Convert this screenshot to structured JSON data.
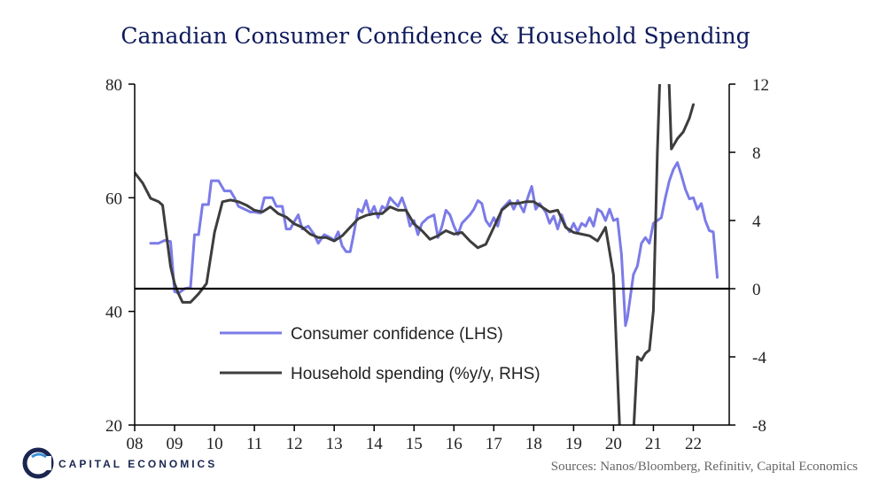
{
  "chart_data": {
    "type": "line",
    "title": "Canadian Consumer Confidence & Household Spending",
    "x_tick_labels": [
      "08",
      "09",
      "10",
      "11",
      "12",
      "13",
      "14",
      "15",
      "16",
      "17",
      "18",
      "19",
      "20",
      "21",
      "22"
    ],
    "xlim": [
      2008,
      2022.9
    ],
    "left_axis": {
      "ylim": [
        20,
        80
      ],
      "ticks": [
        "20",
        "40",
        "60",
        "80"
      ]
    },
    "right_axis": {
      "ylim": [
        -8,
        12
      ],
      "ticks": [
        "-8",
        "-4",
        "0",
        "4",
        "8",
        "12"
      ]
    },
    "series": [
      {
        "name": "Consumer confidence (LHS)",
        "axis": "left",
        "color": "#7b7be8",
        "points": [
          [
            2008.4,
            52
          ],
          [
            2008.6,
            52
          ],
          [
            2008.75,
            52.5
          ],
          [
            2008.9,
            52.3
          ],
          [
            2009.0,
            43.5
          ],
          [
            2009.1,
            43.2
          ],
          [
            2009.25,
            44
          ],
          [
            2009.4,
            44.2
          ],
          [
            2009.5,
            53.5
          ],
          [
            2009.6,
            53.5
          ],
          [
            2009.7,
            58.8
          ],
          [
            2009.85,
            58.8
          ],
          [
            2009.92,
            63
          ],
          [
            2010.1,
            63
          ],
          [
            2010.25,
            61.2
          ],
          [
            2010.4,
            61.2
          ],
          [
            2010.5,
            60
          ],
          [
            2010.6,
            58.5
          ],
          [
            2010.75,
            58
          ],
          [
            2010.9,
            57.5
          ],
          [
            2011.0,
            57.5
          ],
          [
            2011.15,
            57.3
          ],
          [
            2011.25,
            60
          ],
          [
            2011.45,
            60
          ],
          [
            2011.55,
            58.5
          ],
          [
            2011.7,
            58.5
          ],
          [
            2011.8,
            54.5
          ],
          [
            2011.9,
            54.5
          ],
          [
            2012.0,
            55.8
          ],
          [
            2012.1,
            57
          ],
          [
            2012.2,
            54.5
          ],
          [
            2012.35,
            55
          ],
          [
            2012.5,
            53.5
          ],
          [
            2012.6,
            52
          ],
          [
            2012.75,
            53.5
          ],
          [
            2012.9,
            53
          ],
          [
            2013.0,
            52.5
          ],
          [
            2013.1,
            54
          ],
          [
            2013.2,
            51.5
          ],
          [
            2013.3,
            50.5
          ],
          [
            2013.4,
            50.5
          ],
          [
            2013.5,
            54
          ],
          [
            2013.6,
            58
          ],
          [
            2013.7,
            57.5
          ],
          [
            2013.8,
            59.5
          ],
          [
            2013.9,
            57
          ],
          [
            2014.0,
            58.5
          ],
          [
            2014.1,
            56.5
          ],
          [
            2014.2,
            58.5
          ],
          [
            2014.3,
            58
          ],
          [
            2014.4,
            60
          ],
          [
            2014.5,
            59.2
          ],
          [
            2014.6,
            58.5
          ],
          [
            2014.7,
            60
          ],
          [
            2014.8,
            58
          ],
          [
            2014.9,
            55
          ],
          [
            2015.0,
            56
          ],
          [
            2015.1,
            53.5
          ],
          [
            2015.2,
            55.5
          ],
          [
            2015.35,
            56.5
          ],
          [
            2015.5,
            57
          ],
          [
            2015.6,
            53
          ],
          [
            2015.7,
            55
          ],
          [
            2015.8,
            57.8
          ],
          [
            2015.9,
            57
          ],
          [
            2016.0,
            55
          ],
          [
            2016.1,
            53.5
          ],
          [
            2016.2,
            55.5
          ],
          [
            2016.4,
            57
          ],
          [
            2016.5,
            58
          ],
          [
            2016.6,
            59.5
          ],
          [
            2016.7,
            59
          ],
          [
            2016.8,
            56
          ],
          [
            2016.9,
            55
          ],
          [
            2017.0,
            56.5
          ],
          [
            2017.1,
            55
          ],
          [
            2017.2,
            58
          ],
          [
            2017.4,
            59.5
          ],
          [
            2017.5,
            58
          ],
          [
            2017.6,
            59.5
          ],
          [
            2017.75,
            57.5
          ],
          [
            2017.85,
            60
          ],
          [
            2017.95,
            62
          ],
          [
            2018.05,
            58
          ],
          [
            2018.15,
            59
          ],
          [
            2018.3,
            57.5
          ],
          [
            2018.4,
            55.5
          ],
          [
            2018.5,
            56.8
          ],
          [
            2018.6,
            54.5
          ],
          [
            2018.7,
            57
          ],
          [
            2018.8,
            55
          ],
          [
            2018.9,
            54
          ],
          [
            2019.0,
            55.5
          ],
          [
            2019.1,
            54
          ],
          [
            2019.2,
            55.5
          ],
          [
            2019.3,
            55
          ],
          [
            2019.4,
            56.5
          ],
          [
            2019.5,
            55
          ],
          [
            2019.6,
            58
          ],
          [
            2019.7,
            57.5
          ],
          [
            2019.8,
            56
          ],
          [
            2019.9,
            58
          ],
          [
            2020.0,
            56
          ],
          [
            2020.1,
            56.3
          ],
          [
            2020.2,
            50
          ],
          [
            2020.3,
            37.5
          ],
          [
            2020.35,
            39
          ],
          [
            2020.5,
            46.5
          ],
          [
            2020.6,
            48
          ],
          [
            2020.7,
            52
          ],
          [
            2020.8,
            53
          ],
          [
            2020.9,
            52
          ],
          [
            2021.0,
            55.5
          ],
          [
            2021.1,
            56
          ],
          [
            2021.2,
            56.5
          ],
          [
            2021.3,
            60
          ],
          [
            2021.4,
            63
          ],
          [
            2021.5,
            65
          ],
          [
            2021.6,
            66.2
          ],
          [
            2021.7,
            64
          ],
          [
            2021.8,
            61.5
          ],
          [
            2021.9,
            59.8
          ],
          [
            2022.0,
            60
          ],
          [
            2022.1,
            58
          ],
          [
            2022.2,
            59
          ],
          [
            2022.3,
            56
          ],
          [
            2022.4,
            54.2
          ],
          [
            2022.5,
            54
          ],
          [
            2022.6,
            46
          ]
        ]
      },
      {
        "name": "Household spending (%y/y, RHS)",
        "axis": "right",
        "color": "#3d3d3d",
        "points": [
          [
            2008.0,
            6.8
          ],
          [
            2008.2,
            6.2
          ],
          [
            2008.4,
            5.3
          ],
          [
            2008.6,
            5.1
          ],
          [
            2008.7,
            4.9
          ],
          [
            2008.9,
            1.3
          ],
          [
            2009.0,
            0.3
          ],
          [
            2009.1,
            -0.3
          ],
          [
            2009.2,
            -0.8
          ],
          [
            2009.4,
            -0.8
          ],
          [
            2009.6,
            -0.3
          ],
          [
            2009.8,
            0.3
          ],
          [
            2010.0,
            3.3
          ],
          [
            2010.2,
            5.1
          ],
          [
            2010.4,
            5.2
          ],
          [
            2010.6,
            5.1
          ],
          [
            2010.8,
            4.9
          ],
          [
            2011.0,
            4.6
          ],
          [
            2011.2,
            4.5
          ],
          [
            2011.4,
            4.8
          ],
          [
            2011.6,
            4.4
          ],
          [
            2011.8,
            4.2
          ],
          [
            2012.0,
            3.8
          ],
          [
            2012.2,
            3.6
          ],
          [
            2012.4,
            3.2
          ],
          [
            2012.6,
            3.0
          ],
          [
            2012.8,
            3.0
          ],
          [
            2013.0,
            2.8
          ],
          [
            2013.2,
            3.1
          ],
          [
            2013.4,
            3.6
          ],
          [
            2013.6,
            4.1
          ],
          [
            2013.8,
            4.3
          ],
          [
            2014.0,
            4.4
          ],
          [
            2014.2,
            4.4
          ],
          [
            2014.4,
            4.8
          ],
          [
            2014.6,
            4.6
          ],
          [
            2014.8,
            4.6
          ],
          [
            2015.0,
            3.8
          ],
          [
            2015.2,
            3.4
          ],
          [
            2015.4,
            2.9
          ],
          [
            2015.6,
            3.1
          ],
          [
            2015.8,
            3.4
          ],
          [
            2016.0,
            3.2
          ],
          [
            2016.2,
            3.3
          ],
          [
            2016.4,
            2.8
          ],
          [
            2016.6,
            2.4
          ],
          [
            2016.8,
            2.6
          ],
          [
            2017.0,
            3.6
          ],
          [
            2017.2,
            4.6
          ],
          [
            2017.4,
            5.0
          ],
          [
            2017.6,
            5.0
          ],
          [
            2017.8,
            5.1
          ],
          [
            2018.0,
            5.1
          ],
          [
            2018.2,
            4.8
          ],
          [
            2018.4,
            4.5
          ],
          [
            2018.6,
            4.6
          ],
          [
            2018.8,
            3.6
          ],
          [
            2019.0,
            3.3
          ],
          [
            2019.2,
            3.2
          ],
          [
            2019.4,
            3.1
          ],
          [
            2019.6,
            2.8
          ],
          [
            2019.8,
            3.6
          ],
          [
            2020.0,
            0.8
          ],
          [
            2020.15,
            -8
          ],
          [
            2020.35,
            -9.5
          ],
          [
            2020.5,
            -8.5
          ],
          [
            2020.6,
            -4
          ],
          [
            2020.7,
            -4.2
          ],
          [
            2020.8,
            -3.8
          ],
          [
            2020.9,
            -3.6
          ],
          [
            2021.0,
            -1.3
          ],
          [
            2021.1,
            8
          ],
          [
            2021.2,
            15
          ],
          [
            2021.35,
            15
          ],
          [
            2021.45,
            8.2
          ],
          [
            2021.6,
            8.8
          ],
          [
            2021.75,
            9.2
          ],
          [
            2021.9,
            10
          ],
          [
            2022.0,
            10.8
          ]
        ]
      }
    ],
    "legend": {
      "placement": "lower-left"
    },
    "source": "Sources:  Nanos/Bloomberg,  Refinitiv, Capital Economics",
    "brand": "CAPITAL ECONOMICS"
  }
}
